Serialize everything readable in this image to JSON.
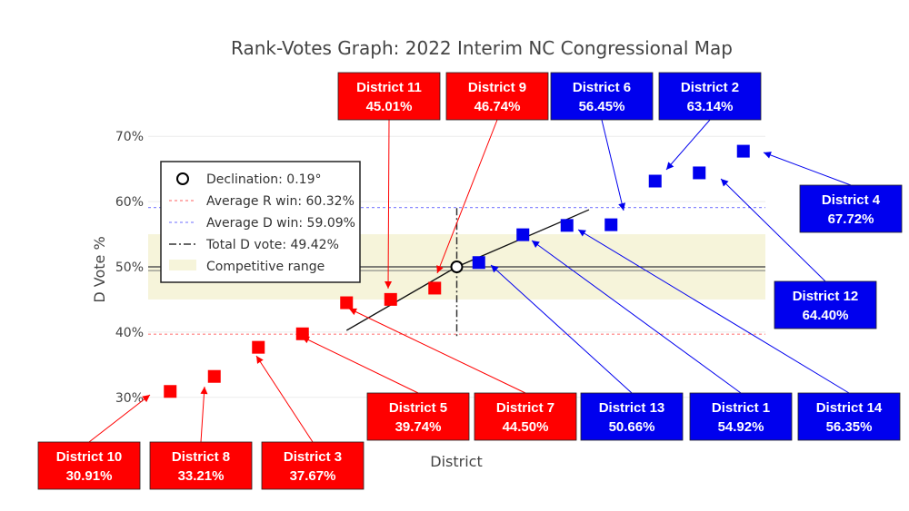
{
  "chart_data": {
    "type": "scatter",
    "title": "Rank-Votes Graph: 2022 Interim NC Congressional Map",
    "xlabel": "District",
    "ylabel": "D Vote %",
    "ylim": [
      0.29,
      0.71
    ],
    "xlim": [
      0.5,
      14.5
    ],
    "yticks": [
      {
        "value": 0.3,
        "label": "30%"
      },
      {
        "value": 0.4,
        "label": "40%"
      },
      {
        "value": 0.5,
        "label": "50%"
      },
      {
        "value": 0.6,
        "label": "60%"
      },
      {
        "value": 0.7,
        "label": "70%"
      }
    ],
    "grid": true,
    "legend_position": "top-left",
    "legend": [
      {
        "key": "declination",
        "label": "Declination: 0.19°"
      },
      {
        "key": "avg_r",
        "label": "Average R win: 60.32%"
      },
      {
        "key": "avg_d",
        "label": "Average D win: 59.09%"
      },
      {
        "key": "total_d",
        "label": "Total D vote: 49.42%"
      },
      {
        "key": "competitive",
        "label": "Competitive range"
      }
    ],
    "reference_lines": {
      "avg_r_win_level": 0.3968,
      "avg_d_win_level": 0.5909,
      "total_d_vote_level": 0.4942,
      "competitive_range": [
        0.45,
        0.55
      ],
      "fifty_line": 0.5,
      "midpoint": {
        "x": 7.5,
        "y": 0.5
      },
      "r_tangent": {
        "from": {
          "x": 5,
          "y": 0.4026
        },
        "to": {
          "x": 7.5,
          "y": 0.5
        }
      },
      "d_tangent": {
        "from": {
          "x": 7.5,
          "y": 0.5
        },
        "to": {
          "x": 10.5,
          "y": 0.5875
        }
      }
    },
    "colors": {
      "rep": "#ff0000",
      "dem": "#0000ee",
      "avg_r_line": "#ff7f7f",
      "avg_d_line": "#8a8aff",
      "competitive_fill": "#f6f4da"
    },
    "points": [
      {
        "rank": 1,
        "district": "District 10",
        "value": 0.3091,
        "party": "R",
        "label": "30.91%"
      },
      {
        "rank": 2,
        "district": "District 8",
        "value": 0.3321,
        "party": "R",
        "label": "33.21%"
      },
      {
        "rank": 3,
        "district": "District 3",
        "value": 0.3767,
        "party": "R",
        "label": "37.67%"
      },
      {
        "rank": 4,
        "district": "District 5",
        "value": 0.3974,
        "party": "R",
        "label": "39.74%"
      },
      {
        "rank": 5,
        "district": "District 7",
        "value": 0.445,
        "party": "R",
        "label": "44.50%"
      },
      {
        "rank": 6,
        "district": "District 11",
        "value": 0.4501,
        "party": "R",
        "label": "45.01%"
      },
      {
        "rank": 7,
        "district": "District 9",
        "value": 0.4674,
        "party": "R",
        "label": "46.74%"
      },
      {
        "rank": 8,
        "district": "District 13",
        "value": 0.5066,
        "party": "D",
        "label": "50.66%"
      },
      {
        "rank": 9,
        "district": "District 1",
        "value": 0.5492,
        "party": "D",
        "label": "54.92%"
      },
      {
        "rank": 10,
        "district": "District 14",
        "value": 0.5635,
        "party": "D",
        "label": "56.35%"
      },
      {
        "rank": 11,
        "district": "District 6",
        "value": 0.5645,
        "party": "D",
        "label": "56.45%"
      },
      {
        "rank": 12,
        "district": "District 2",
        "value": 0.6314,
        "party": "D",
        "label": "63.14%"
      },
      {
        "rank": 13,
        "district": "District 12",
        "value": 0.644,
        "party": "D",
        "label": "64.40%"
      },
      {
        "rank": 14,
        "district": "District 4",
        "value": 0.6772,
        "party": "D",
        "label": "67.72%"
      }
    ]
  }
}
